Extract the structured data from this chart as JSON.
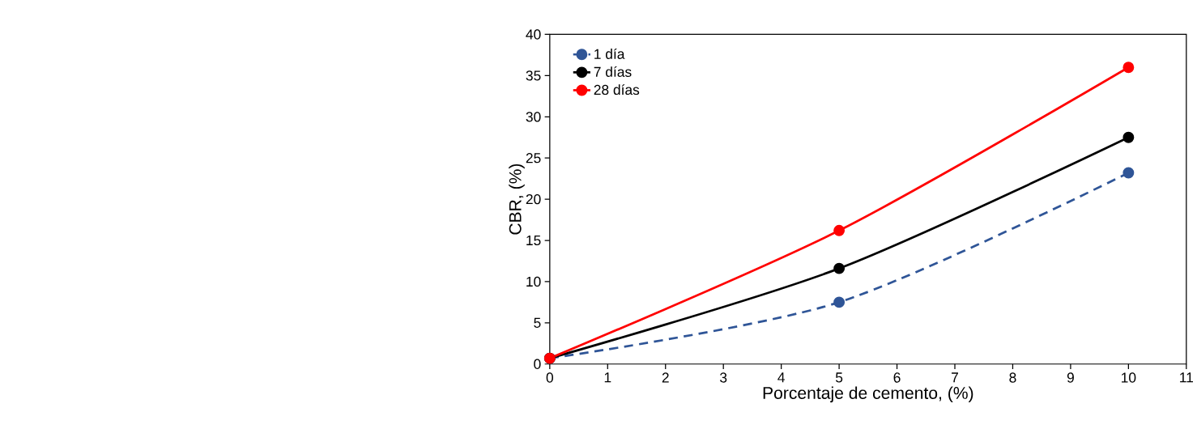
{
  "chart_data": {
    "type": "line",
    "xlabel": "Porcentaje de cemento, (%)",
    "ylabel": "CBR, (%)",
    "x": [
      0,
      5,
      10
    ],
    "series": [
      {
        "name": "1 día",
        "color": "#2f5597",
        "values": [
          0.7,
          7.5,
          23.2
        ],
        "line_style": "dashed"
      },
      {
        "name": "7 días",
        "color": "#000000",
        "values": [
          0.7,
          11.6,
          27.5
        ],
        "line_style": "solid"
      },
      {
        "name": "28 días",
        "color": "#ff0000",
        "values": [
          0.7,
          16.2,
          36.0
        ],
        "line_style": "solid"
      }
    ],
    "xlim": [
      0,
      11
    ],
    "xticks": [
      0,
      1,
      2,
      3,
      4,
      5,
      6,
      7,
      8,
      9,
      10,
      11
    ],
    "ylim": [
      0,
      40
    ],
    "yticks": [
      0,
      5,
      10,
      15,
      20,
      25,
      30,
      35,
      40
    ],
    "grid": false,
    "legend": "top left",
    "marker": "circle"
  }
}
